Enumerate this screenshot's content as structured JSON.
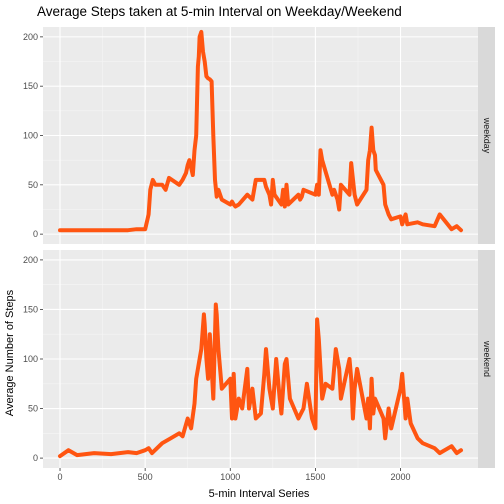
{
  "chart_data": {
    "type": "line",
    "title": "Average Steps taken at 5-min Interval on Weekday/Weekend",
    "xlabel": "5-min Interval Series",
    "ylabel": "Average Number of Steps",
    "xlim": [
      -100,
      2455
    ],
    "ylim": [
      -10,
      210
    ],
    "x_ticks": [
      0,
      500,
      1000,
      1500,
      2000
    ],
    "y_ticks": [
      0,
      50,
      100,
      150,
      200
    ],
    "grid": true,
    "line_color": "#FF5511",
    "panels": [
      {
        "label": "weekday",
        "series": [
          {
            "x": [
              0,
              100,
              200,
              300,
              400,
              450,
              500,
              520,
              530,
              545,
              560,
              600,
              620,
              640,
              700,
              720,
              740,
              750,
              760,
              780,
              790,
              800,
              810,
              815,
              820,
              830,
              840,
              850,
              860,
              870,
              880,
              890,
              900,
              910,
              920,
              930,
              950,
              1000,
              1010,
              1020,
              1030,
              1050,
              1100,
              1130,
              1150,
              1200,
              1210,
              1230,
              1240,
              1250,
              1260,
              1300,
              1310,
              1320,
              1330,
              1340,
              1400,
              1410,
              1420,
              1430,
              1500,
              1510,
              1520,
              1530,
              1540,
              1600,
              1610,
              1630,
              1640,
              1650,
              1700,
              1710,
              1730,
              1745,
              1800,
              1810,
              1820,
              1830,
              1840,
              1850,
              1855,
              1900,
              1910,
              1930,
              1945,
              2000,
              2010,
              2030,
              2040,
              2100,
              2130,
              2200,
              2230,
              2300,
              2330,
              2355
            ],
            "y": [
              4,
              4,
              4,
              4,
              4,
              5,
              5,
              20,
              45,
              55,
              50,
              50,
              45,
              57,
              50,
              55,
              62,
              70,
              75,
              60,
              85,
              100,
              170,
              180,
              200,
              205,
              185,
              175,
              160,
              158,
              157,
              155,
              100,
              55,
              38,
              45,
              35,
              30,
              33,
              30,
              28,
              30,
              40,
              35,
              55,
              55,
              48,
              40,
              30,
              55,
              40,
              30,
              45,
              28,
              50,
              30,
              40,
              35,
              38,
              45,
              40,
              50,
              40,
              85,
              75,
              40,
              45,
              35,
              25,
              50,
              40,
              72,
              40,
              30,
              45,
              75,
              85,
              108,
              85,
              80,
              65,
              50,
              30,
              20,
              15,
              18,
              10,
              20,
              10,
              12,
              10,
              8,
              20,
              5,
              8,
              4
            ]
          }
        ]
      },
      {
        "label": "weekend",
        "series": [
          {
            "x": [
              0,
              50,
              100,
              200,
              300,
              400,
              450,
              500,
              520,
              540,
              600,
              650,
              700,
              720,
              750,
              770,
              790,
              800,
              820,
              830,
              845,
              850,
              860,
              870,
              880,
              900,
              915,
              920,
              930,
              950,
              1000,
              1010,
              1020,
              1030,
              1050,
              1070,
              1100,
              1110,
              1130,
              1150,
              1180,
              1200,
              1210,
              1230,
              1250,
              1270,
              1290,
              1300,
              1320,
              1330,
              1350,
              1400,
              1430,
              1450,
              1480,
              1500,
              1510,
              1520,
              1530,
              1540,
              1560,
              1600,
              1620,
              1640,
              1650,
              1700,
              1710,
              1720,
              1730,
              1745,
              1800,
              1810,
              1820,
              1830,
              1840,
              1850,
              1900,
              1910,
              1930,
              1945,
              2000,
              2010,
              2030,
              2040,
              2060,
              2100,
              2130,
              2200,
              2230,
              2300,
              2330,
              2355
            ],
            "y": [
              2,
              8,
              3,
              5,
              4,
              6,
              5,
              8,
              10,
              5,
              15,
              20,
              25,
              22,
              40,
              30,
              55,
              80,
              100,
              110,
              145,
              135,
              100,
              80,
              125,
              60,
              155,
              145,
              110,
              70,
              80,
              40,
              85,
              40,
              60,
              50,
              90,
              50,
              70,
              40,
              45,
              85,
              110,
              70,
              50,
              100,
              60,
              45,
              95,
              100,
              60,
              40,
              50,
              75,
              40,
              30,
              140,
              120,
              90,
              60,
              75,
              70,
              110,
              90,
              60,
              100,
              80,
              40,
              70,
              90,
              40,
              60,
              30,
              80,
              45,
              60,
              40,
              20,
              50,
              30,
              70,
              85,
              40,
              60,
              35,
              20,
              15,
              10,
              5,
              12,
              5,
              8
            ]
          }
        ]
      }
    ]
  }
}
